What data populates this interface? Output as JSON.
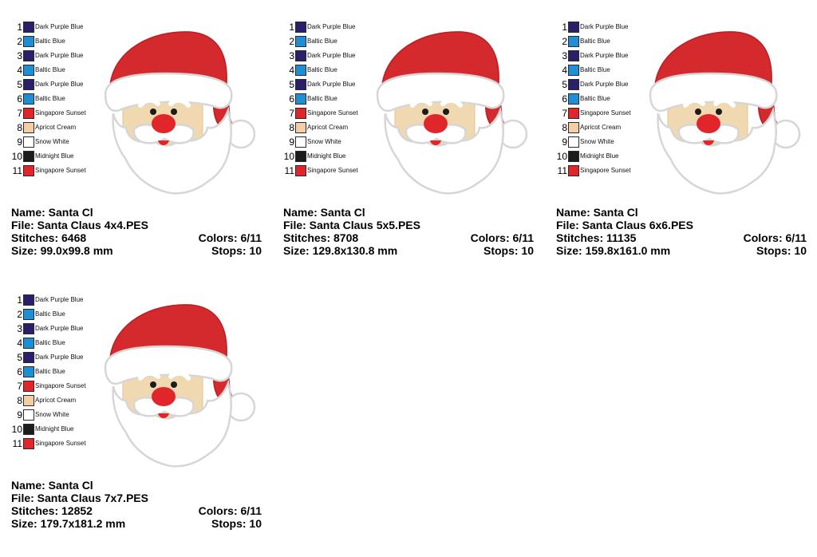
{
  "palette_items": [
    {
      "num": "1",
      "name": "Dark Purple Blue",
      "color": "#2a1f6b"
    },
    {
      "num": "2",
      "name": "Baltic Blue",
      "color": "#1e8fd4"
    },
    {
      "num": "3",
      "name": "Dark Purple Blue",
      "color": "#2a1f6b"
    },
    {
      "num": "4",
      "name": "Baltic Blue",
      "color": "#1e8fd4"
    },
    {
      "num": "5",
      "name": "Dark Purple Blue",
      "color": "#2a1f6b"
    },
    {
      "num": "6",
      "name": "Baltic Blue",
      "color": "#1e8fd4"
    },
    {
      "num": "7",
      "name": "Singapore Sunset",
      "color": "#e0262a"
    },
    {
      "num": "8",
      "name": "Apricot Cream",
      "color": "#f4cfa6"
    },
    {
      "num": "9",
      "name": "Snow White",
      "color": "#ffffff"
    },
    {
      "num": "10",
      "name": "Midnight Blue",
      "color": "#1c1c1c"
    },
    {
      "num": "11",
      "name": "Singapore Sunset",
      "color": "#e0262a"
    }
  ],
  "designs": [
    {
      "name_label": "Name: Santa Cl",
      "file_label": "File: Santa Claus 4x4.PES",
      "stitches_label": "Stitches: 6468",
      "colors_label": "Colors: 6/11",
      "size_label": "Size: 99.0x99.8 mm",
      "stops_label": "Stops: 10"
    },
    {
      "name_label": "Name: Santa Cl",
      "file_label": "File: Santa Claus 5x5.PES",
      "stitches_label": "Stitches: 8708",
      "colors_label": "Colors: 6/11",
      "size_label": "Size: 129.8x130.8 mm",
      "stops_label": "Stops: 10"
    },
    {
      "name_label": "Name: Santa Cl",
      "file_label": "File: Santa Claus 6x6.PES",
      "stitches_label": "Stitches: 11135",
      "colors_label": "Colors: 6/11",
      "size_label": "Size: 159.8x161.0 mm",
      "stops_label": "Stops: 10"
    },
    {
      "name_label": "Name: Santa Cl",
      "file_label": "File: Santa Claus 7x7.PES",
      "stitches_label": "Stitches: 12852",
      "colors_label": "Colors: 6/11",
      "size_label": "Size: 179.7x181.2 mm",
      "stops_label": "Stops: 10"
    }
  ],
  "art_colors": {
    "hat_red": "#d42a2e",
    "face_tan": "#f0d8b0",
    "nose_red": "#e0262a",
    "eye_dark": "#1c1c1c",
    "fur_outline": "#d6d6d6"
  }
}
